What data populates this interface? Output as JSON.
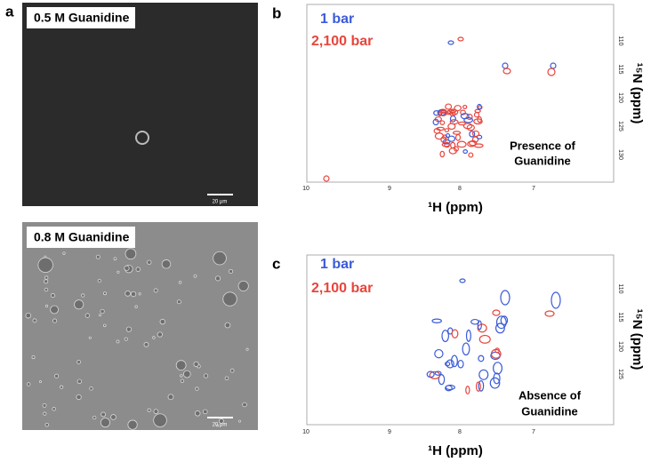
{
  "panel_a": {
    "label": "a",
    "images": [
      {
        "label": "0.5 M Guanidine",
        "scale_bar": "20 μm"
      },
      {
        "label": "0.8 M Guanidine",
        "scale_bar": "20 μm"
      }
    ]
  },
  "panel_b": {
    "label": "b",
    "legend": [
      "1 bar",
      "2,100 bar"
    ],
    "note": [
      "Presence of",
      "Guanidine"
    ],
    "x_label": "¹H (ppm)",
    "y_label": "¹⁵N (ppm)",
    "x_ticks": [
      "10",
      "9",
      "8",
      "7"
    ],
    "y_ticks": [
      "110",
      "115",
      "120",
      "125",
      "130"
    ]
  },
  "panel_c": {
    "label": "c",
    "legend": [
      "1 bar",
      "2,100 bar"
    ],
    "note": [
      "Absence of",
      "Guanidine"
    ],
    "x_label": "¹H (ppm)",
    "y_label": "¹⁵N (ppm)",
    "x_ticks": [
      "10",
      "9",
      "8",
      "7"
    ],
    "y_ticks": [
      "110",
      "115",
      "120",
      "125"
    ]
  }
}
